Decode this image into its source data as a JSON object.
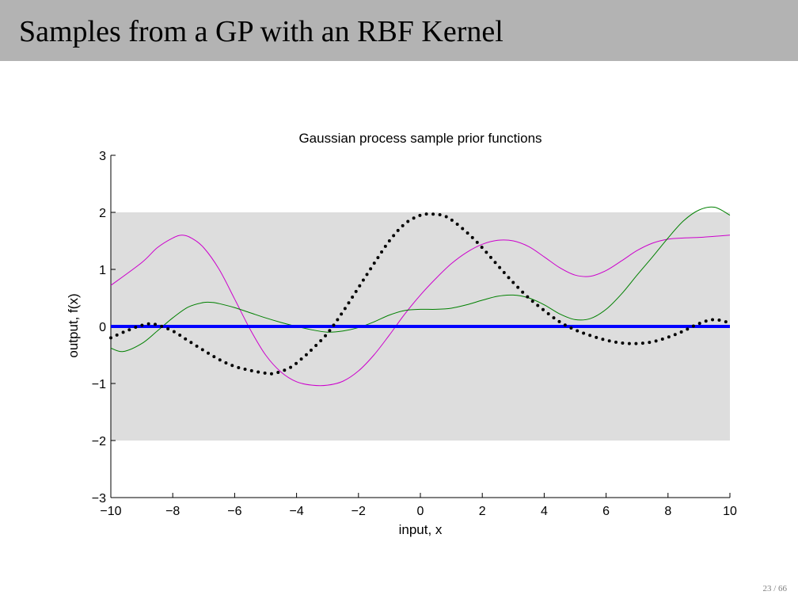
{
  "slide": {
    "title": "Samples from a GP with an RBF Kernel",
    "page_number": "23 / 66",
    "header_color": "#b3b3b3"
  },
  "chart_data": {
    "type": "line",
    "title": "Gaussian process sample prior functions",
    "xlabel": "input, x",
    "ylabel": "output, f(x)",
    "xlim": [
      -10,
      10
    ],
    "ylim": [
      -3,
      3
    ],
    "xticks": [
      -10,
      -8,
      -6,
      -4,
      -2,
      0,
      2,
      4,
      6,
      8,
      10
    ],
    "yticks": [
      -3,
      -2,
      -1,
      0,
      1,
      2,
      3
    ],
    "xtick_labels": [
      "−10",
      "−8",
      "−6",
      "−4",
      "−2",
      "0",
      "2",
      "4",
      "6",
      "8",
      "10"
    ],
    "ytick_labels": [
      "−3",
      "−2",
      "−1",
      "0",
      "1",
      "2",
      "3"
    ],
    "confidence_band": {
      "lower": -2,
      "upper": 2,
      "color": "#dddddd"
    },
    "series": [
      {
        "name": "mean",
        "style": "solid",
        "color": "#0000ff",
        "x": [
          -10,
          10
        ],
        "y": [
          0,
          0
        ]
      },
      {
        "name": "sample-magenta",
        "style": "solid",
        "color": "#cc00cc",
        "x": [
          -10,
          -9,
          -8.5,
          -8,
          -7.7,
          -7.4,
          -7,
          -6.5,
          -6,
          -5.5,
          -5,
          -4.5,
          -4,
          -3.5,
          -3,
          -2.5,
          -2,
          -1.5,
          -1,
          -0.5,
          0,
          0.5,
          1,
          1.5,
          2,
          2.5,
          3,
          3.5,
          4,
          4.5,
          5,
          5.5,
          6,
          6.5,
          7,
          7.5,
          8,
          8.5,
          9,
          9.5,
          10
        ],
        "y": [
          0.72,
          1.12,
          1.38,
          1.55,
          1.6,
          1.55,
          1.38,
          1.0,
          0.48,
          -0.05,
          -0.5,
          -0.8,
          -0.97,
          -1.03,
          -1.03,
          -0.96,
          -0.78,
          -0.5,
          -0.15,
          0.22,
          0.55,
          0.84,
          1.1,
          1.3,
          1.44,
          1.51,
          1.5,
          1.4,
          1.22,
          1.03,
          0.9,
          0.88,
          0.98,
          1.15,
          1.33,
          1.46,
          1.53,
          1.55,
          1.56,
          1.58,
          1.6
        ]
      },
      {
        "name": "sample-green",
        "style": "solid",
        "color": "#008000",
        "x": [
          -10,
          -9.6,
          -9,
          -8.5,
          -8,
          -7.5,
          -7,
          -6.7,
          -6.5,
          -6,
          -5.5,
          -5,
          -4.5,
          -4,
          -3.5,
          -3,
          -2.5,
          -2,
          -1.5,
          -1,
          -0.5,
          0,
          0.5,
          1,
          1.5,
          2,
          2.5,
          3,
          3.5,
          4,
          4.5,
          5,
          5.5,
          6,
          6.5,
          7,
          7.5,
          8,
          8.5,
          9,
          9.5,
          10
        ],
        "y": [
          -0.38,
          -0.44,
          -0.3,
          -0.08,
          0.15,
          0.34,
          0.42,
          0.42,
          0.4,
          0.33,
          0.24,
          0.15,
          0.07,
          0.0,
          -0.06,
          -0.1,
          -0.08,
          -0.02,
          0.08,
          0.2,
          0.28,
          0.3,
          0.3,
          0.32,
          0.38,
          0.46,
          0.53,
          0.55,
          0.5,
          0.38,
          0.22,
          0.12,
          0.14,
          0.3,
          0.57,
          0.9,
          1.22,
          1.55,
          1.85,
          2.04,
          2.09,
          1.95
        ]
      },
      {
        "name": "sample-black-dotted",
        "style": "dotted",
        "color": "#000000",
        "x": [
          -10,
          -9.5,
          -9,
          -8.6,
          -8,
          -7.5,
          -7,
          -6.5,
          -6,
          -5.5,
          -5,
          -4.7,
          -4.2,
          -3.8,
          -3.5,
          -3,
          -2.5,
          -2,
          -1.5,
          -1,
          -0.5,
          0,
          0.3,
          0.7,
          1,
          1.5,
          2,
          2.5,
          3,
          3.5,
          4,
          4.5,
          5,
          5.5,
          6,
          6.5,
          7,
          7.5,
          8,
          8.5,
          9,
          9.5,
          10
        ],
        "y": [
          -0.2,
          -0.08,
          0.02,
          0.04,
          -0.08,
          -0.25,
          -0.42,
          -0.58,
          -0.7,
          -0.77,
          -0.82,
          -0.82,
          -0.72,
          -0.55,
          -0.4,
          -0.12,
          0.26,
          0.68,
          1.1,
          1.5,
          1.8,
          1.95,
          1.97,
          1.95,
          1.87,
          1.65,
          1.38,
          1.07,
          0.77,
          0.5,
          0.28,
          0.08,
          -0.06,
          -0.16,
          -0.24,
          -0.29,
          -0.3,
          -0.27,
          -0.19,
          -0.08,
          0.05,
          0.12,
          0.06
        ]
      }
    ]
  }
}
